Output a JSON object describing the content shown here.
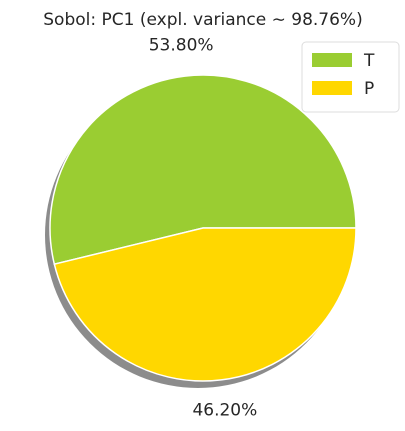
{
  "chart_data": {
    "type": "pie",
    "title": "Sobol: PC1 (expl. variance  ∼ 98.76%)",
    "categories": [
      "T",
      "P"
    ],
    "values": [
      53.8,
      46.2
    ],
    "value_labels": [
      "53.80%",
      "46.20%"
    ],
    "colors": [
      "#9acd32",
      "#ffd700"
    ],
    "start_angle": 0,
    "shadow": true,
    "legend": "upper right"
  }
}
